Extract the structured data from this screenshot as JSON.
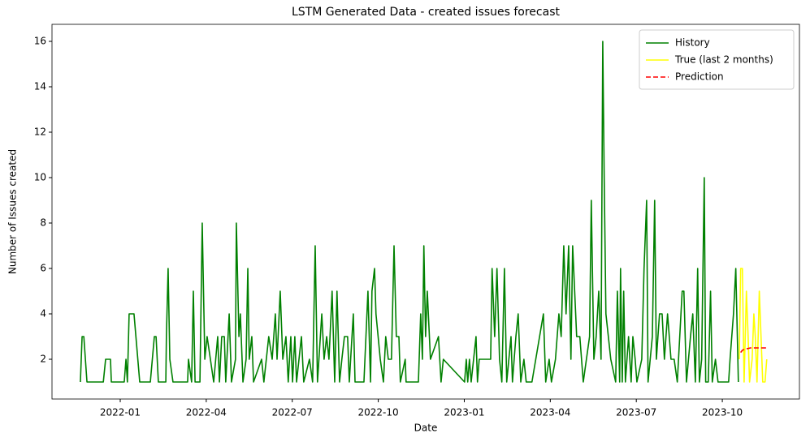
{
  "chart_data": {
    "type": "line",
    "title": "LSTM Generated Data - created issues forecast",
    "x_label": "Date",
    "y_label": "Number of Issues created",
    "xlim": [
      -2.38,
      23.69
    ],
    "xticks": [
      {
        "value": 0,
        "label": "2022-01"
      },
      {
        "value": 3,
        "label": "2022-04"
      },
      {
        "value": 6,
        "label": "2022-07"
      },
      {
        "value": 9,
        "label": "2022-10"
      },
      {
        "value": 12,
        "label": "2023-01"
      },
      {
        "value": 15,
        "label": "2023-04"
      },
      {
        "value": 18,
        "label": "2023-07"
      },
      {
        "value": 21,
        "label": "2023-10"
      }
    ],
    "ylim": [
      0.25,
      16.75
    ],
    "yticks": [
      2,
      4,
      6,
      8,
      10,
      12,
      14,
      16
    ],
    "legend": "upper right",
    "series": [
      {
        "name": "History",
        "color": "green",
        "linestyle": "-",
        "x": [
          -1.39,
          -1.33,
          -1.27,
          -1.16,
          -0.59,
          -0.51,
          -0.34,
          -0.31,
          0.14,
          0.2,
          0.25,
          0.31,
          0.48,
          0.68,
          1.05,
          1.19,
          1.25,
          1.33,
          1.59,
          1.61,
          1.67,
          1.73,
          1.84,
          2.35,
          2.38,
          2.49,
          2.55,
          2.61,
          2.78,
          2.86,
          2.95,
          3.03,
          3.26,
          3.4,
          3.46,
          3.54,
          3.63,
          3.68,
          3.8,
          3.88,
          4.02,
          4.05,
          4.14,
          4.19,
          4.28,
          4.39,
          4.45,
          4.5,
          4.59,
          4.65,
          4.93,
          5.01,
          5.18,
          5.3,
          5.41,
          5.47,
          5.58,
          5.67,
          5.78,
          5.86,
          5.95,
          6.01,
          6.09,
          6.15,
          6.32,
          6.4,
          6.6,
          6.71,
          6.8,
          6.88,
          7.03,
          7.11,
          7.2,
          7.28,
          7.39,
          7.48,
          7.56,
          7.65,
          7.73,
          7.82,
          7.93,
          7.99,
          8.13,
          8.19,
          8.5,
          8.64,
          8.73,
          8.78,
          8.87,
          8.92,
          9.07,
          9.18,
          9.26,
          9.35,
          9.46,
          9.55,
          9.63,
          9.72,
          9.77,
          9.94,
          9.97,
          10.4,
          10.48,
          10.54,
          10.59,
          10.65,
          10.71,
          10.82,
          11.1,
          11.19,
          11.27,
          12.01,
          12.07,
          12.12,
          12.18,
          12.24,
          12.41,
          12.46,
          12.52,
          12.92,
          12.97,
          13.06,
          13.14,
          13.23,
          13.31,
          13.4,
          13.48,
          13.63,
          13.68,
          13.8,
          13.88,
          13.97,
          14.08,
          14.16,
          14.36,
          14.76,
          14.84,
          14.96,
          15.04,
          15.18,
          15.3,
          15.38,
          15.47,
          15.55,
          15.64,
          15.72,
          15.78,
          15.92,
          16.03,
          16.15,
          16.37,
          16.43,
          16.52,
          16.6,
          16.69,
          16.77,
          16.83,
          16.88,
          16.94,
          17.11,
          17.28,
          17.34,
          17.42,
          17.45,
          17.51,
          17.56,
          17.62,
          17.73,
          17.82,
          17.88,
          17.96,
          18.02,
          18.19,
          18.27,
          18.36,
          18.41,
          18.56,
          18.64,
          18.7,
          18.81,
          18.9,
          18.98,
          19.09,
          19.21,
          19.32,
          19.43,
          19.6,
          19.66,
          19.75,
          19.89,
          19.97,
          20.06,
          20.14,
          20.2,
          20.28,
          20.37,
          20.42,
          20.51,
          20.59,
          20.65,
          20.76,
          20.85,
          21.22,
          21.27,
          21.39,
          21.47,
          21.56
        ],
        "values": [
          1,
          3,
          3,
          1,
          1,
          2,
          2,
          1,
          1,
          2,
          1,
          4,
          4,
          1,
          1,
          3,
          3,
          1,
          1,
          3,
          6,
          2,
          1,
          1,
          2,
          1,
          5,
          1,
          1,
          8,
          2,
          3,
          1,
          3,
          1,
          3,
          3,
          1,
          4,
          1,
          2,
          8,
          3,
          4,
          1,
          2,
          6,
          2,
          3,
          1,
          2,
          1,
          3,
          2,
          4,
          2,
          5,
          2,
          3,
          1,
          3,
          1,
          3,
          1,
          3,
          1,
          2,
          1,
          7,
          1,
          4,
          2,
          3,
          2,
          5,
          1,
          5,
          1,
          2,
          3,
          3,
          1,
          4,
          1,
          1,
          5,
          1,
          5,
          6,
          4,
          2,
          1,
          3,
          2,
          2,
          7,
          3,
          3,
          1,
          2,
          1,
          1,
          4,
          2,
          7,
          3,
          5,
          2,
          3,
          1,
          2,
          1,
          2,
          1,
          2,
          1,
          3,
          1,
          2,
          2,
          6,
          3,
          6,
          2,
          1,
          6,
          1,
          3,
          1,
          3,
          4,
          1,
          2,
          1,
          1,
          4,
          1,
          2,
          1,
          2,
          4,
          3,
          7,
          4,
          7,
          2,
          7,
          3,
          3,
          1,
          3,
          9,
          2,
          3,
          5,
          2,
          16,
          10,
          4,
          2,
          1,
          5,
          1,
          6,
          1,
          5,
          1,
          3,
          1,
          3,
          2,
          1,
          2,
          6,
          9,
          1,
          3,
          9,
          2,
          4,
          4,
          2,
          4,
          2,
          2,
          1,
          5,
          5,
          1,
          3,
          4,
          1,
          6,
          1,
          2,
          10,
          1,
          1,
          5,
          1,
          2,
          1,
          1,
          2,
          4,
          6,
          1
        ]
      },
      {
        "name": "True (last 2 months)",
        "color": "yellow",
        "linestyle": "-",
        "x": [
          21.59,
          21.64,
          21.7,
          21.76,
          21.84,
          21.9,
          21.95,
          22.04,
          22.1,
          22.15,
          22.21,
          22.29,
          22.35,
          22.41,
          22.49,
          22.55
        ],
        "values": [
          2,
          6,
          6,
          1,
          5,
          3,
          1,
          2,
          4,
          3,
          1,
          5,
          3,
          1,
          1,
          2
        ]
      },
      {
        "name": "Prediction",
        "color": "red",
        "linestyle": "--",
        "x": [
          21.64,
          21.7,
          21.81,
          21.98,
          22.15,
          22.32,
          22.55
        ],
        "values": [
          2.3,
          2.4,
          2.45,
          2.5,
          2.5,
          2.5,
          2.5
        ]
      }
    ]
  }
}
